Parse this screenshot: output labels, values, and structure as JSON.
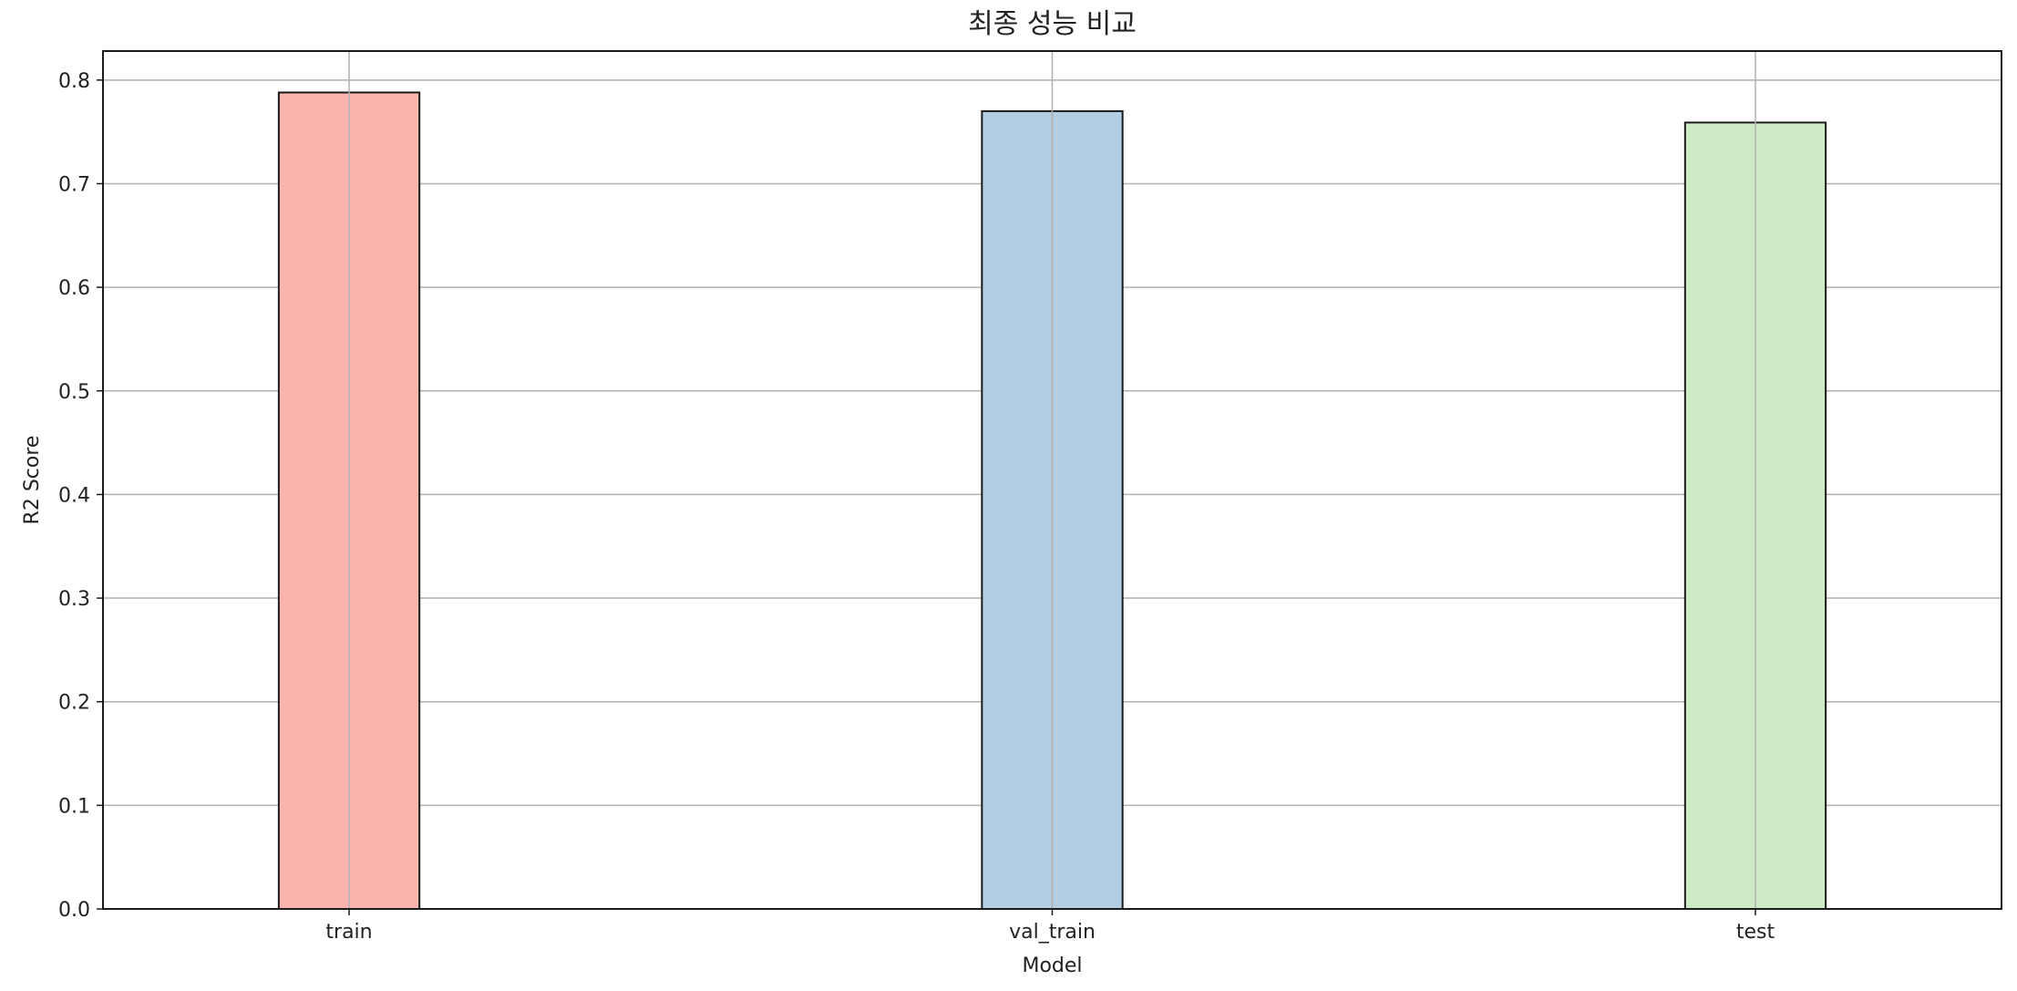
{
  "chart_data": {
    "type": "bar",
    "title": "최종 성능 비교",
    "xlabel": "Model",
    "ylabel": "R2 Score",
    "categories": [
      "train",
      "val_train",
      "test"
    ],
    "values": [
      0.788,
      0.77,
      0.759
    ],
    "colors": [
      "#fbb4ae",
      "#b3cde3",
      "#ccebc5"
    ],
    "edge_color": "#1a1a1a",
    "grid_color": "#b0b0b0",
    "ylim": [
      0,
      0.828
    ],
    "yticks": [
      "0.0",
      "0.1",
      "0.2",
      "0.3",
      "0.4",
      "0.5",
      "0.6",
      "0.7",
      "0.8"
    ],
    "grid": true
  }
}
